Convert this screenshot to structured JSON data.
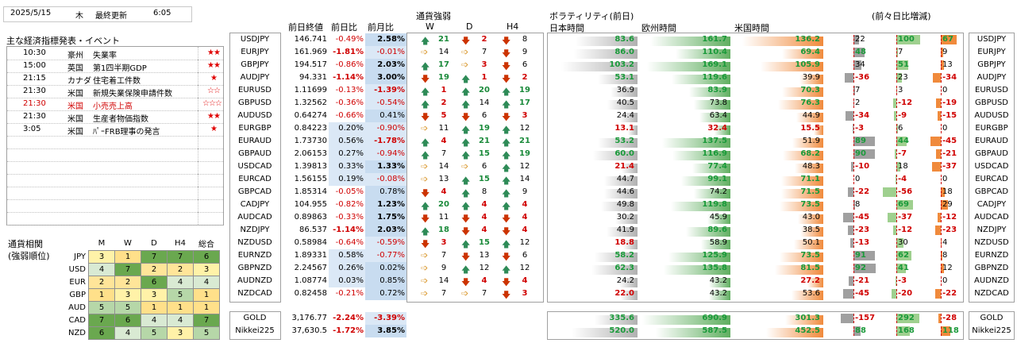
{
  "header": {
    "date": "2025/5/15",
    "weekday": "木",
    "updated_label": "最終更新",
    "time": "6:05"
  },
  "events": {
    "title": "主な経済指標発表・イベント",
    "items": [
      {
        "time": "10:30",
        "country": "豪州",
        "name": "失業率",
        "stars": "★★",
        "red": false
      },
      {
        "time": "15:00",
        "country": "英国",
        "name": "第1四半期GDP",
        "stars": "★★",
        "red": false
      },
      {
        "time": "21:15",
        "country": "カナダ",
        "name": "住宅着工件数",
        "stars": "★",
        "red": false
      },
      {
        "time": "21:30",
        "country": "米国",
        "name": "新規失業保険申請件数",
        "stars": "☆☆",
        "red": false
      },
      {
        "time": "21:30",
        "country": "米国",
        "name": "小売売上高",
        "stars": "☆☆☆",
        "red": true
      },
      {
        "time": "21:30",
        "country": "米国",
        "name": "生産者物価指数",
        "stars": "★★",
        "red": false
      },
      {
        "time": "3:05",
        "country": "米国",
        "name": "ﾊﾟｰFRB理事の発言",
        "stars": "★",
        "red": false
      }
    ]
  },
  "ranking": {
    "title1": "通貨相関",
    "title2": "(強弱順位)",
    "cols": [
      "M",
      "W",
      "D",
      "H4",
      "総合"
    ],
    "rows": [
      {
        "cur": "JPY",
        "v": [
          3,
          1,
          7,
          7,
          6
        ]
      },
      {
        "cur": "USD",
        "v": [
          4,
          7,
          2,
          2,
          3
        ]
      },
      {
        "cur": "EUR",
        "v": [
          2,
          2,
          6,
          4,
          4
        ]
      },
      {
        "cur": "GBP",
        "v": [
          1,
          3,
          3,
          5,
          1
        ]
      },
      {
        "cur": "AUD",
        "v": [
          5,
          5,
          1,
          1,
          1
        ]
      },
      {
        "cur": "CAD",
        "v": [
          7,
          6,
          4,
          4,
          7
        ]
      },
      {
        "cur": "NZD",
        "v": [
          6,
          4,
          5,
          3,
          5
        ]
      }
    ]
  },
  "pairs_header": {
    "close": "前日終値",
    "day": "前日比",
    "month": "前月比",
    "strength": "通貨強弱",
    "w": "W",
    "d": "D",
    "h4": "H4",
    "vol": "ボラティリティ(前日)",
    "asia": "日本時間",
    "europe": "欧州時間",
    "us": "米国時間",
    "change": "(前々日比増減)"
  },
  "pairs": [
    {
      "sym": "USDJPY",
      "close": "146.741",
      "day": "-0.49%",
      "month": "2.58%",
      "w": [
        "up",
        21
      ],
      "d": [
        "dn",
        2
      ],
      "h4": [
        "dn",
        8
      ],
      "asia": "83.6",
      "eu": "161.7",
      "us": "136.2",
      "c1": "22",
      "c2": "100",
      "c3": "67"
    },
    {
      "sym": "EURJPY",
      "close": "161.969",
      "day": "-1.81%",
      "month": "-0.01%",
      "w": [
        "fl",
        14
      ],
      "d": [
        "fl",
        7
      ],
      "h4": [
        "dn",
        9
      ],
      "asia": "86.0",
      "eu": "110.4",
      "us": "69.4",
      "c1": "48",
      "c2": "7",
      "c3": "9"
    },
    {
      "sym": "GBPJPY",
      "close": "194.517",
      "day": "-0.86%",
      "month": "2.03%",
      "w": [
        "up",
        17
      ],
      "d": [
        "fl",
        3
      ],
      "h4": [
        "dn",
        6
      ],
      "asia": "103.2",
      "eu": "169.1",
      "us": "105.9",
      "c1": "34",
      "c2": "51",
      "c3": "13"
    },
    {
      "sym": "AUDJPY",
      "close": "94.331",
      "day": "-1.14%",
      "month": "3.00%",
      "w": [
        "dn",
        19
      ],
      "d": [
        "up",
        1
      ],
      "h4": [
        "dn",
        2
      ],
      "asia": "53.1",
      "eu": "119.6",
      "us": "39.9",
      "c1": "-36",
      "c2": "23",
      "c3": "-34"
    },
    {
      "sym": "EURUSD",
      "close": "1.11699",
      "day": "-0.13%",
      "month": "-1.39%",
      "w": [
        "up",
        1
      ],
      "d": [
        "up",
        20
      ],
      "h4": [
        "up",
        19
      ],
      "asia": "36.9",
      "eu": "83.9",
      "us": "70.3",
      "c1": "7",
      "c2": "3",
      "c3": "0"
    },
    {
      "sym": "GBPUSD",
      "close": "1.32562",
      "day": "-0.36%",
      "month": "-0.54%",
      "w": [
        "up",
        2
      ],
      "d": [
        "up",
        14
      ],
      "h4": [
        "up",
        17
      ],
      "asia": "40.5",
      "eu": "73.8",
      "us": "76.3",
      "c1": "2",
      "c2": "-12",
      "c3": "-19"
    },
    {
      "sym": "AUDUSD",
      "close": "0.64274",
      "day": "-0.66%",
      "month": "0.41%",
      "w": [
        "dn",
        5
      ],
      "d": [
        "dn",
        6
      ],
      "h4": [
        "dn",
        3
      ],
      "asia": "24.4",
      "eu": "63.4",
      "us": "44.9",
      "c1": "-34",
      "c2": "-9",
      "c3": "-15"
    },
    {
      "sym": "EURGBP",
      "close": "0.84223",
      "day": "0.20%",
      "month": "-0.90%",
      "w": [
        "fl",
        11
      ],
      "d": [
        "up",
        19
      ],
      "h4": [
        "up",
        12
      ],
      "asia": "13.1",
      "eu": "32.4",
      "us": "15.5",
      "c1": "-3",
      "c2": "6",
      "c3": "0"
    },
    {
      "sym": "EURAUD",
      "close": "1.73730",
      "day": "0.56%",
      "month": "-1.78%",
      "w": [
        "up",
        4
      ],
      "d": [
        "up",
        21
      ],
      "h4": [
        "up",
        21
      ],
      "asia": "53.2",
      "eu": "137.5",
      "us": "51.9",
      "c1": "89",
      "c2": "44",
      "c3": "-45"
    },
    {
      "sym": "GBPAUD",
      "close": "2.06153",
      "day": "0.27%",
      "month": "-0.94%",
      "w": [
        "up",
        7
      ],
      "d": [
        "up",
        15
      ],
      "h4": [
        "up",
        19
      ],
      "asia": "60.0",
      "eu": "116.9",
      "us": "68.2",
      "c1": "90",
      "c2": "-7",
      "c3": "-21"
    },
    {
      "sym": "USDCAD",
      "close": "1.39813",
      "day": "0.33%",
      "month": "1.33%",
      "w": [
        "fl",
        14
      ],
      "d": [
        "fl",
        6
      ],
      "h4": [
        "up",
        12
      ],
      "asia": "21.4",
      "eu": "77.4",
      "us": "48.3",
      "c1": "-10",
      "c2": "18",
      "c3": "-37"
    },
    {
      "sym": "EURCAD",
      "close": "1.56155",
      "day": "0.19%",
      "month": "-0.08%",
      "w": [
        "fl",
        13
      ],
      "d": [
        "up",
        15
      ],
      "h4": [
        "up",
        14
      ],
      "asia": "44.7",
      "eu": "99.1",
      "us": "71.1",
      "c1": "0",
      "c2": "-4",
      "c3": "0"
    },
    {
      "sym": "GBPCAD",
      "close": "1.85314",
      "day": "-0.05%",
      "month": "0.78%",
      "w": [
        "dn",
        4
      ],
      "d": [
        "up",
        8
      ],
      "h4": [
        "up",
        9
      ],
      "asia": "44.6",
      "eu": "74.2",
      "us": "71.5",
      "c1": "-22",
      "c2": "-56",
      "c3": "18"
    },
    {
      "sym": "CADJPY",
      "close": "104.955",
      "day": "-0.82%",
      "month": "1.23%",
      "w": [
        "up",
        20
      ],
      "d": [
        "up",
        4
      ],
      "h4": [
        "up",
        4
      ],
      "asia": "49.8",
      "eu": "119.8",
      "us": "73.5",
      "c1": "8",
      "c2": "69",
      "c3": "29"
    },
    {
      "sym": "AUDCAD",
      "close": "0.89863",
      "day": "-0.33%",
      "month": "1.75%",
      "w": [
        "dn",
        11
      ],
      "d": [
        "dn",
        4
      ],
      "h4": [
        "dn",
        4
      ],
      "asia": "30.2",
      "eu": "45.9",
      "us": "43.0",
      "c1": "-45",
      "c2": "-37",
      "c3": "-12"
    },
    {
      "sym": "NZDJPY",
      "close": "86.537",
      "day": "-1.14%",
      "month": "2.03%",
      "w": [
        "up",
        18
      ],
      "d": [
        "dn",
        4
      ],
      "h4": [
        "dn",
        4
      ],
      "asia": "41.9",
      "eu": "89.6",
      "us": "38.5",
      "c1": "-23",
      "c2": "-12",
      "c3": "-23"
    },
    {
      "sym": "NZDUSD",
      "close": "0.58984",
      "day": "-0.64%",
      "month": "-0.59%",
      "w": [
        "dn",
        3
      ],
      "d": [
        "up",
        15
      ],
      "h4": [
        "up",
        12
      ],
      "asia": "18.8",
      "eu": "58.9",
      "us": "50.1",
      "c1": "-13",
      "c2": "30",
      "c3": "4"
    },
    {
      "sym": "EURNZD",
      "close": "1.89331",
      "day": "0.58%",
      "month": "-0.77%",
      "w": [
        "fl",
        7
      ],
      "d": [
        "dn",
        13
      ],
      "h4": [
        "dn",
        6
      ],
      "asia": "58.2",
      "eu": "125.9",
      "us": "73.5",
      "c1": "91",
      "c2": "62",
      "c3": "8"
    },
    {
      "sym": "GBPNZD",
      "close": "2.24567",
      "day": "0.26%",
      "month": "0.02%",
      "w": [
        "fl",
        9
      ],
      "d": [
        "up",
        12
      ],
      "h4": [
        "up",
        12
      ],
      "asia": "62.3",
      "eu": "135.8",
      "us": "81.5",
      "c1": "92",
      "c2": "41",
      "c3": "12"
    },
    {
      "sym": "AUDNZD",
      "close": "1.08774",
      "day": "0.03%",
      "month": "0.85%",
      "w": [
        "fl",
        14
      ],
      "d": [
        "dn",
        4
      ],
      "h4": [
        "dn",
        4
      ],
      "asia": "24.2",
      "eu": "43.2",
      "us": "27.2",
      "c1": "-21",
      "c2": "-3",
      "c3": "0"
    },
    {
      "sym": "NZDCAD",
      "close": "0.82458",
      "day": "-0.21%",
      "month": "0.72%",
      "w": [
        "fl",
        7
      ],
      "d": [
        "fl",
        7
      ],
      "h4": [
        "dn",
        3
      ],
      "asia": "22.0",
      "eu": "43.2",
      "us": "53.6",
      "c1": "-45",
      "c2": "-20",
      "c3": "-22"
    }
  ],
  "others": [
    {
      "sym": "GOLD",
      "close": "3,176.77",
      "day": "-2.24%",
      "month": "-3.39%",
      "asia": "335.6",
      "eu": "690.9",
      "us": "301.3",
      "c1": "-157",
      "c2": "292",
      "c3": "-28"
    },
    {
      "sym": "Nikkei225",
      "close": "37,630.5",
      "day": "-1.72%",
      "month": "3.85%",
      "asia": "520.0",
      "eu": "587.5",
      "us": "452.5",
      "c1": "88",
      "c2": "168",
      "c3": "118"
    }
  ],
  "colors": {
    "green": "#c6e0b4",
    "mid": "#8fbf6f",
    "dark": "#63a03a",
    "yellow": "#ffeb9c",
    "orange": "#f4a261"
  }
}
